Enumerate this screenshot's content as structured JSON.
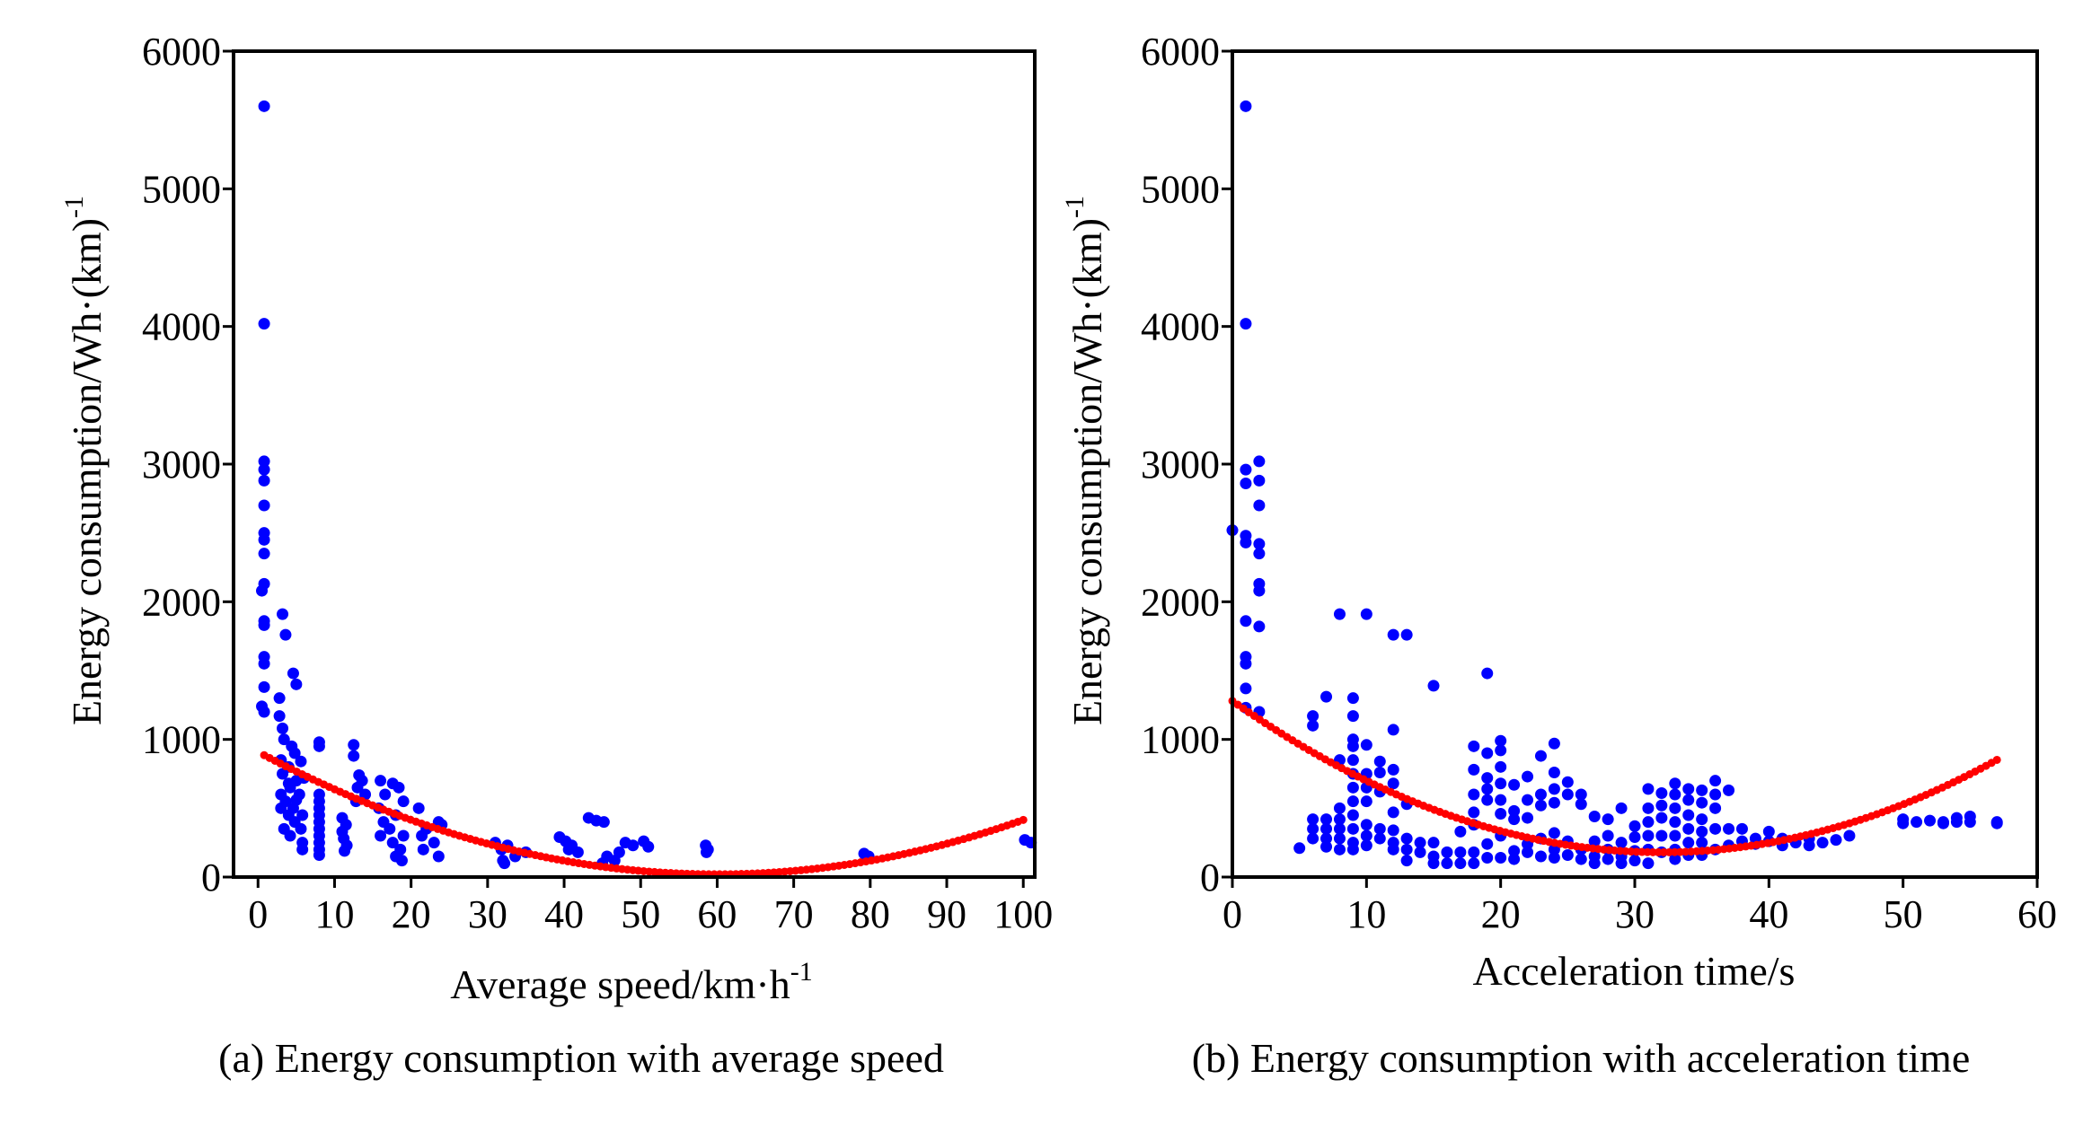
{
  "chart_data": [
    {
      "type": "scatter",
      "caption": "(a) Energy consumption with average speed",
      "xlabel": "Average speed/km·h",
      "xlabel_sup": "-1",
      "ylabel": "Energy consumption/Wh·(km)",
      "ylabel_sup": "-1",
      "xlim": [
        -3.2,
        101.5
      ],
      "ylim": [
        0,
        6000
      ],
      "xticks": [
        0,
        10,
        20,
        30,
        40,
        50,
        60,
        70,
        80,
        90,
        100
      ],
      "yticks": [
        0,
        1000,
        2000,
        3000,
        4000,
        5000,
        6000
      ],
      "grid": false,
      "point_color": "#0000ff",
      "fit_color": "#ff0000",
      "fit": {
        "type": "quadratic",
        "vertex_x": 60,
        "vertex_y": 20,
        "a": 0.247,
        "x_range": [
          0.8,
          100
        ]
      },
      "points": [
        [
          0.8,
          5600
        ],
        [
          0.8,
          4020
        ],
        [
          0.8,
          3020
        ],
        [
          0.8,
          2960
        ],
        [
          0.8,
          2880
        ],
        [
          0.8,
          2700
        ],
        [
          0.8,
          2500
        ],
        [
          0.8,
          2450
        ],
        [
          0.8,
          2350
        ],
        [
          0.8,
          2130
        ],
        [
          0.5,
          2080
        ],
        [
          0.8,
          1860
        ],
        [
          0.8,
          1830
        ],
        [
          0.8,
          1600
        ],
        [
          0.8,
          1550
        ],
        [
          0.8,
          1380
        ],
        [
          0.5,
          1240
        ],
        [
          0.8,
          1200
        ],
        [
          3.2,
          1910
        ],
        [
          3.6,
          1760
        ],
        [
          4.6,
          1480
        ],
        [
          5,
          1400
        ],
        [
          2.8,
          1300
        ],
        [
          2.8,
          1170
        ],
        [
          3.2,
          1080
        ],
        [
          3.4,
          1000
        ],
        [
          4.4,
          950
        ],
        [
          4.8,
          900
        ],
        [
          3,
          850
        ],
        [
          5.6,
          840
        ],
        [
          4,
          800
        ],
        [
          3.2,
          750
        ],
        [
          5,
          700
        ],
        [
          4.2,
          650
        ],
        [
          3,
          600
        ],
        [
          5.4,
          600
        ],
        [
          3.6,
          550
        ],
        [
          4.6,
          500
        ],
        [
          3,
          500
        ],
        [
          5.8,
          450
        ],
        [
          4,
          450
        ],
        [
          4.8,
          400
        ],
        [
          3.4,
          350
        ],
        [
          5.6,
          350
        ],
        [
          4.2,
          300
        ],
        [
          5.8,
          250
        ],
        [
          5.8,
          200
        ],
        [
          4,
          680
        ],
        [
          5,
          560
        ],
        [
          6,
          720
        ],
        [
          8,
          980
        ],
        [
          8,
          950
        ],
        [
          8,
          600
        ],
        [
          8,
          550
        ],
        [
          8,
          500
        ],
        [
          8,
          450
        ],
        [
          8,
          400
        ],
        [
          8,
          350
        ],
        [
          8,
          300
        ],
        [
          8,
          250
        ],
        [
          8,
          200
        ],
        [
          8,
          160
        ],
        [
          11,
          430
        ],
        [
          11.5,
          380
        ],
        [
          11,
          330
        ],
        [
          11.2,
          280
        ],
        [
          11.6,
          230
        ],
        [
          11.3,
          190
        ],
        [
          12.5,
          960
        ],
        [
          12.5,
          880
        ],
        [
          13.2,
          740
        ],
        [
          13.6,
          700
        ],
        [
          13,
          650
        ],
        [
          14,
          600
        ],
        [
          12.8,
          550
        ],
        [
          16,
          700
        ],
        [
          17.6,
          680
        ],
        [
          18.4,
          650
        ],
        [
          16.6,
          600
        ],
        [
          19,
          550
        ],
        [
          15.8,
          500
        ],
        [
          18,
          450
        ],
        [
          16.4,
          400
        ],
        [
          17.2,
          350
        ],
        [
          19,
          300
        ],
        [
          16,
          300
        ],
        [
          17.6,
          250
        ],
        [
          18.6,
          200
        ],
        [
          18,
          150
        ],
        [
          18.8,
          120
        ],
        [
          21,
          500
        ],
        [
          23.6,
          400
        ],
        [
          22,
          350
        ],
        [
          21.4,
          300
        ],
        [
          23,
          250
        ],
        [
          21.6,
          200
        ],
        [
          23.6,
          150
        ],
        [
          24,
          380
        ],
        [
          31,
          250
        ],
        [
          32.6,
          230
        ],
        [
          31.8,
          200
        ],
        [
          33.6,
          150
        ],
        [
          32,
          120
        ],
        [
          32.2,
          100
        ],
        [
          35,
          180
        ],
        [
          39.4,
          290
        ],
        [
          40.2,
          260
        ],
        [
          41,
          230
        ],
        [
          40.6,
          200
        ],
        [
          41.8,
          180
        ],
        [
          43.2,
          430
        ],
        [
          44.2,
          410
        ],
        [
          45.2,
          400
        ],
        [
          45.6,
          150
        ],
        [
          46.6,
          120
        ],
        [
          45,
          100
        ],
        [
          47.2,
          180
        ],
        [
          48,
          250
        ],
        [
          49,
          230
        ],
        [
          50.4,
          260
        ],
        [
          51,
          220
        ],
        [
          58.5,
          230
        ],
        [
          58.8,
          200
        ],
        [
          58.6,
          180
        ],
        [
          79.2,
          170
        ],
        [
          79.8,
          150
        ],
        [
          100.2,
          270
        ],
        [
          101,
          250
        ]
      ]
    },
    {
      "type": "scatter",
      "caption": "(b) Energy consumption with acceleration time",
      "xlabel": "Acceleration time/s",
      "xlabel_sup": "",
      "ylabel": "Energy consumption/Wh·(km)",
      "ylabel_sup": "-1",
      "xlim": [
        0,
        60
      ],
      "ylim": [
        0,
        6000
      ],
      "xticks": [
        0,
        10,
        20,
        30,
        40,
        50,
        60
      ],
      "yticks": [
        0,
        1000,
        2000,
        3000,
        4000,
        5000,
        6000
      ],
      "grid": false,
      "point_color": "#0000ff",
      "fit_color": "#ff0000",
      "fit": {
        "type": "quadratic",
        "vertex_x": 32,
        "vertex_y": 180,
        "a": 1.074,
        "x_range": [
          0,
          57
        ]
      },
      "points": [
        [
          1,
          5600
        ],
        [
          1,
          4020
        ],
        [
          1,
          2960
        ],
        [
          1,
          2860
        ],
        [
          1,
          2480
        ],
        [
          1,
          2430
        ],
        [
          1,
          1860
        ],
        [
          1,
          1600
        ],
        [
          1,
          1550
        ],
        [
          1,
          1370
        ],
        [
          1,
          1230
        ],
        [
          2,
          3020
        ],
        [
          2,
          2880
        ],
        [
          2,
          2700
        ],
        [
          2,
          2420
        ],
        [
          2,
          2350
        ],
        [
          2,
          2130
        ],
        [
          2,
          2080
        ],
        [
          2,
          1820
        ],
        [
          2,
          1200
        ],
        [
          0,
          2520
        ],
        [
          5,
          210
        ],
        [
          6,
          1170
        ],
        [
          6,
          1100
        ],
        [
          6,
          420
        ],
        [
          6,
          350
        ],
        [
          6,
          280
        ],
        [
          7,
          1310
        ],
        [
          7,
          420
        ],
        [
          7,
          350
        ],
        [
          7,
          280
        ],
        [
          7,
          220
        ],
        [
          8,
          1910
        ],
        [
          8,
          850
        ],
        [
          8,
          500
        ],
        [
          8,
          420
        ],
        [
          8,
          350
        ],
        [
          8,
          280
        ],
        [
          8,
          200
        ],
        [
          9,
          1300
        ],
        [
          9,
          1170
        ],
        [
          9,
          1000
        ],
        [
          9,
          950
        ],
        [
          9,
          850
        ],
        [
          9,
          750
        ],
        [
          9,
          650
        ],
        [
          9,
          550
        ],
        [
          9,
          450
        ],
        [
          9,
          350
        ],
        [
          9,
          250
        ],
        [
          9,
          200
        ],
        [
          10,
          1910
        ],
        [
          10,
          960
        ],
        [
          10,
          750
        ],
        [
          10,
          650
        ],
        [
          10,
          550
        ],
        [
          10,
          380
        ],
        [
          10,
          300
        ],
        [
          10,
          230
        ],
        [
          11,
          840
        ],
        [
          11,
          760
        ],
        [
          11,
          620
        ],
        [
          11,
          350
        ],
        [
          11,
          280
        ],
        [
          12,
          1760
        ],
        [
          12,
          1070
        ],
        [
          12,
          780
        ],
        [
          12,
          680
        ],
        [
          12,
          470
        ],
        [
          12,
          340
        ],
        [
          12,
          250
        ],
        [
          12,
          200
        ],
        [
          13,
          1760
        ],
        [
          13,
          530
        ],
        [
          13,
          280
        ],
        [
          13,
          200
        ],
        [
          13,
          120
        ],
        [
          14,
          250
        ],
        [
          14,
          180
        ],
        [
          15,
          1390
        ],
        [
          15,
          250
        ],
        [
          15,
          150
        ],
        [
          15,
          100
        ],
        [
          16,
          180
        ],
        [
          16,
          100
        ],
        [
          17,
          330
        ],
        [
          17,
          180
        ],
        [
          17,
          100
        ],
        [
          18,
          950
        ],
        [
          18,
          780
        ],
        [
          18,
          600
        ],
        [
          18,
          470
        ],
        [
          18,
          380
        ],
        [
          18,
          180
        ],
        [
          18,
          100
        ],
        [
          19,
          1480
        ],
        [
          19,
          900
        ],
        [
          19,
          720
        ],
        [
          19,
          640
        ],
        [
          19,
          560
        ],
        [
          19,
          240
        ],
        [
          19,
          140
        ],
        [
          20,
          990
        ],
        [
          20,
          920
        ],
        [
          20,
          800
        ],
        [
          20,
          680
        ],
        [
          20,
          560
        ],
        [
          20,
          460
        ],
        [
          20,
          300
        ],
        [
          20,
          140
        ],
        [
          21,
          670
        ],
        [
          21,
          480
        ],
        [
          21,
          420
        ],
        [
          21,
          190
        ],
        [
          21,
          130
        ],
        [
          22,
          730
        ],
        [
          22,
          560
        ],
        [
          22,
          430
        ],
        [
          22,
          240
        ],
        [
          22,
          180
        ],
        [
          23,
          880
        ],
        [
          23,
          600
        ],
        [
          23,
          520
        ],
        [
          23,
          280
        ],
        [
          23,
          150
        ],
        [
          24,
          970
        ],
        [
          24,
          760
        ],
        [
          24,
          640
        ],
        [
          24,
          540
        ],
        [
          24,
          320
        ],
        [
          24,
          200
        ],
        [
          24,
          140
        ],
        [
          25,
          690
        ],
        [
          25,
          600
        ],
        [
          25,
          260
        ],
        [
          25,
          160
        ],
        [
          26,
          600
        ],
        [
          26,
          530
        ],
        [
          26,
          200
        ],
        [
          26,
          130
        ],
        [
          27,
          440
        ],
        [
          27,
          260
        ],
        [
          27,
          150
        ],
        [
          27,
          100
        ],
        [
          28,
          420
        ],
        [
          28,
          300
        ],
        [
          28,
          200
        ],
        [
          28,
          130
        ],
        [
          29,
          500
        ],
        [
          29,
          250
        ],
        [
          29,
          150
        ],
        [
          29,
          100
        ],
        [
          30,
          370
        ],
        [
          30,
          290
        ],
        [
          30,
          190
        ],
        [
          30,
          120
        ],
        [
          31,
          640
        ],
        [
          31,
          500
        ],
        [
          31,
          400
        ],
        [
          31,
          300
        ],
        [
          31,
          200
        ],
        [
          31,
          100
        ],
        [
          32,
          610
        ],
        [
          32,
          520
        ],
        [
          32,
          430
        ],
        [
          32,
          300
        ],
        [
          32,
          180
        ],
        [
          33,
          680
        ],
        [
          33,
          600
        ],
        [
          33,
          500
        ],
        [
          33,
          400
        ],
        [
          33,
          300
        ],
        [
          33,
          200
        ],
        [
          33,
          130
        ],
        [
          34,
          640
        ],
        [
          34,
          560
        ],
        [
          34,
          450
        ],
        [
          34,
          350
        ],
        [
          34,
          250
        ],
        [
          34,
          160
        ],
        [
          35,
          630
        ],
        [
          35,
          540
        ],
        [
          35,
          420
        ],
        [
          35,
          330
        ],
        [
          35,
          250
        ],
        [
          35,
          160
        ],
        [
          36,
          700
        ],
        [
          36,
          600
        ],
        [
          36,
          500
        ],
        [
          36,
          350
        ],
        [
          36,
          200
        ],
        [
          37,
          630
        ],
        [
          37,
          350
        ],
        [
          37,
          230
        ],
        [
          38,
          350
        ],
        [
          38,
          260
        ],
        [
          39,
          280
        ],
        [
          39,
          240
        ],
        [
          40,
          330
        ],
        [
          40,
          260
        ],
        [
          41,
          280
        ],
        [
          41,
          230
        ],
        [
          42,
          250
        ],
        [
          43,
          280
        ],
        [
          43,
          230
        ],
        [
          44,
          250
        ],
        [
          45,
          270
        ],
        [
          46,
          300
        ],
        [
          50,
          420
        ],
        [
          50,
          390
        ],
        [
          51,
          400
        ],
        [
          52,
          410
        ],
        [
          53,
          400
        ],
        [
          53,
          390
        ],
        [
          54,
          430
        ],
        [
          54,
          400
        ],
        [
          55,
          440
        ],
        [
          55,
          400
        ],
        [
          57,
          400
        ],
        [
          57,
          390
        ]
      ]
    }
  ]
}
